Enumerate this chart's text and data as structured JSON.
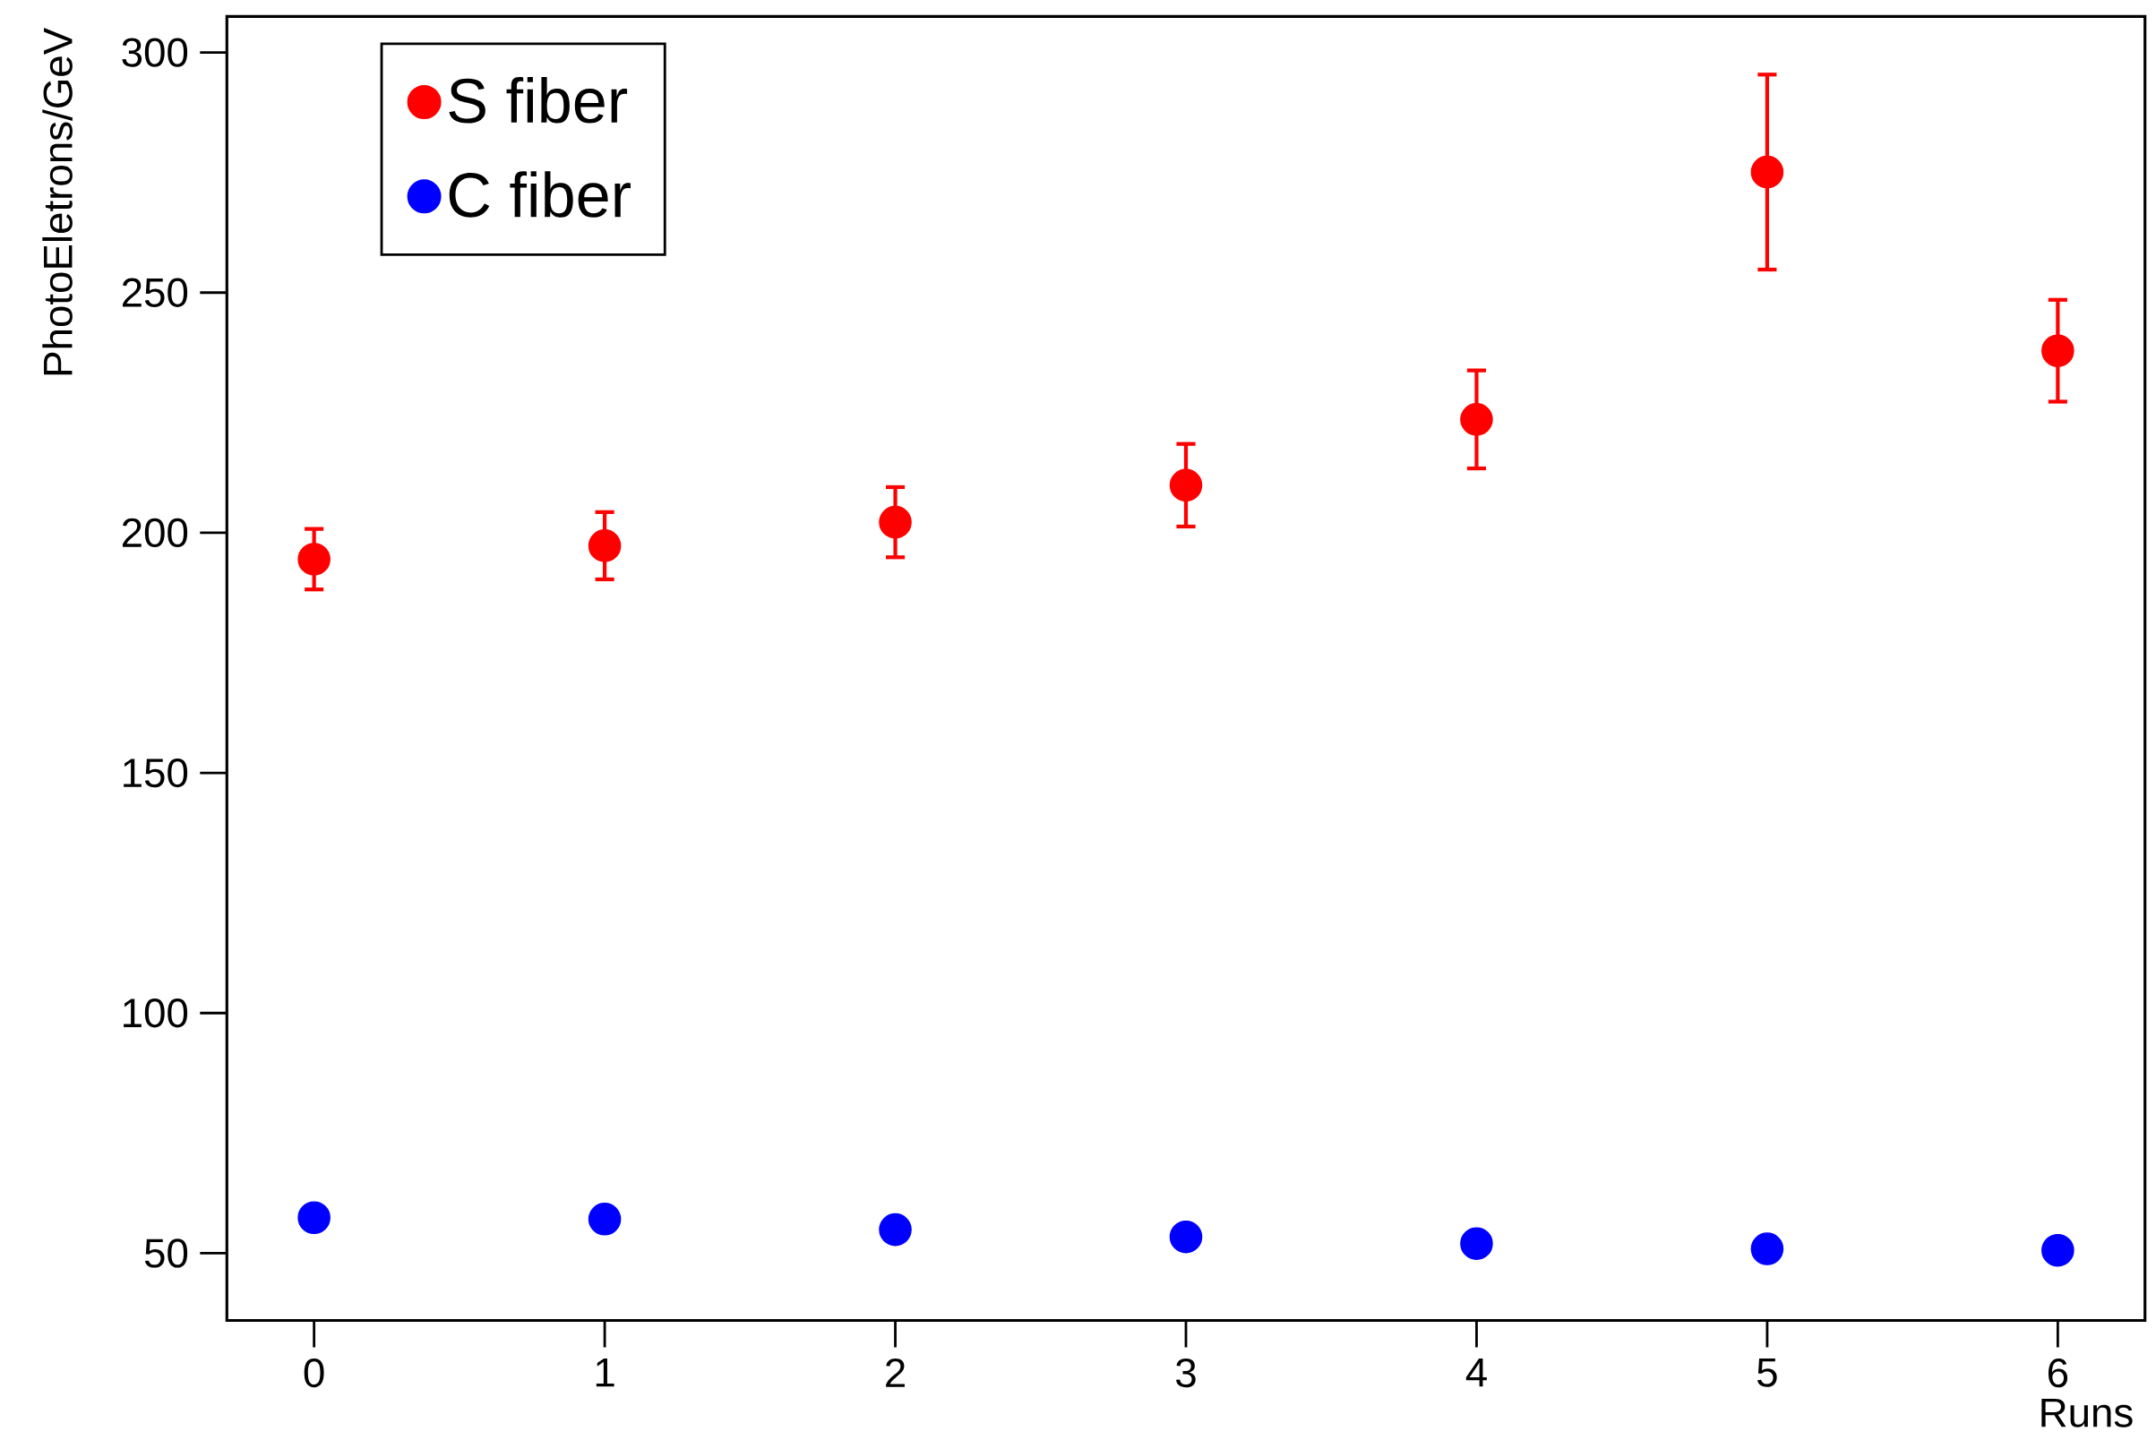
{
  "chart_data": {
    "type": "scatter",
    "xlabel": "Runs",
    "ylabel": "PhotoEletrons/GeV",
    "x": [
      0,
      1,
      2,
      3,
      4,
      5,
      6
    ],
    "series": [
      {
        "name": "S fiber",
        "color": "#ff0000",
        "values": [
          194.5,
          197.3,
          202.2,
          209.9,
          223.6,
          275.1,
          237.9
        ],
        "errors": [
          6.3,
          7,
          7.3,
          8.6,
          10.2,
          20.3,
          10.6
        ]
      },
      {
        "name": "C fiber",
        "color": "#0000ff",
        "values": [
          57.4,
          57.1,
          54.9,
          53.4,
          52.0,
          50.9,
          50.6
        ]
      }
    ],
    "xlim": [
      -0.3,
      6.3
    ],
    "ylim": [
      36,
      307.5
    ],
    "xticks": [
      0,
      1,
      2,
      3,
      4,
      5,
      6
    ],
    "yticks": [
      50,
      100,
      150,
      200,
      250,
      300
    ],
    "legend": "top left",
    "marker": "circle",
    "grid": false
  }
}
